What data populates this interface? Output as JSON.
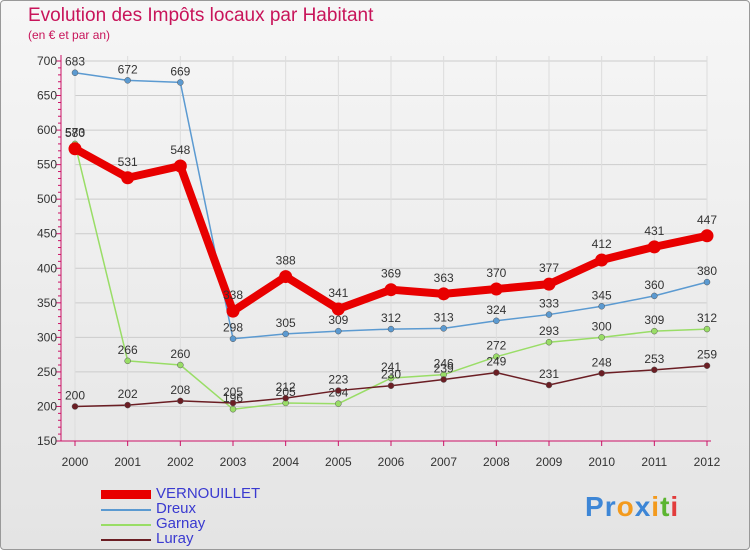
{
  "chart_data": {
    "type": "line",
    "title": "Evolution des Impôts locaux par Habitant",
    "subtitle": "(en € et par an)",
    "x": [
      "2000",
      "2001",
      "2002",
      "2003",
      "2004",
      "2005",
      "2006",
      "2007",
      "2008",
      "2009",
      "2010",
      "2011",
      "2012"
    ],
    "ylim": [
      150,
      700
    ],
    "yticks": [
      150,
      200,
      250,
      300,
      350,
      400,
      450,
      500,
      550,
      600,
      650,
      700
    ],
    "series": [
      {
        "name": "VERNOUILLET",
        "color": "#e80000",
        "values": [
          573,
          531,
          548,
          338,
          388,
          341,
          369,
          363,
          370,
          377,
          412,
          431,
          447
        ]
      },
      {
        "name": "Dreux",
        "color": "#5b9ad1",
        "values": [
          683,
          672,
          669,
          298,
          305,
          309,
          312,
          313,
          324,
          333,
          345,
          360,
          380
        ]
      },
      {
        "name": "Garnay",
        "color": "#99dd66",
        "values": [
          580,
          266,
          260,
          196,
          205,
          204,
          241,
          246,
          272,
          293,
          300,
          309,
          312
        ]
      },
      {
        "name": "Luray",
        "color": "#6b1e24",
        "values": [
          200,
          202,
          208,
          205,
          212,
          223,
          230,
          239,
          249,
          231,
          248,
          253,
          259
        ]
      }
    ]
  },
  "legend": {
    "items": [
      "VERNOUILLET",
      "Dreux",
      "Garnay",
      "Luray"
    ]
  },
  "logo": {
    "text": "Proxiti"
  }
}
